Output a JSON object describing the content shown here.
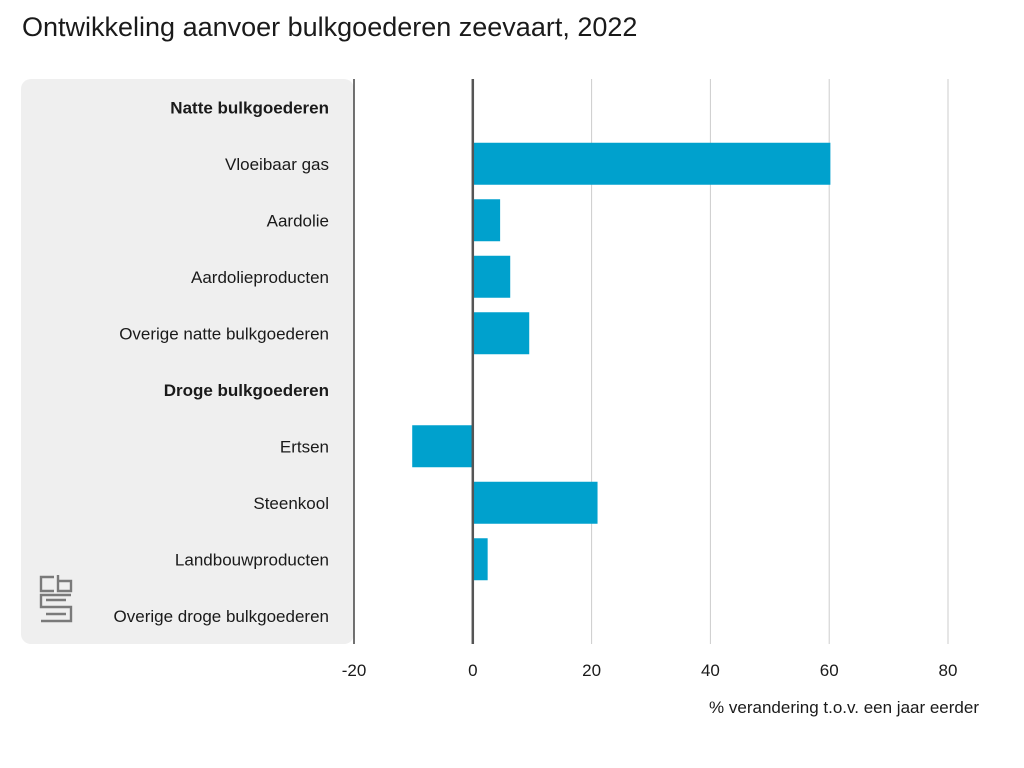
{
  "chart_data": {
    "type": "bar",
    "orientation": "horizontal",
    "title": "Ontwikkeling aanvoer bulkgoederen zeevaart, 2022",
    "xlabel": "% verandering t.o.v. een jaar eerder",
    "ylabel": "",
    "xlim": [
      -20,
      80
    ],
    "xticks": [
      -20,
      0,
      20,
      40,
      60,
      80
    ],
    "grid": true,
    "colors": {
      "bar": "#00a1cd",
      "panel": "#efefef",
      "grid": "#cccccc",
      "zero_line": "#555555"
    },
    "categories": [
      {
        "label": "Natte bulkgoederen",
        "header": true,
        "value": null
      },
      {
        "label": "Vloeibaar gas",
        "header": false,
        "value": 60.2
      },
      {
        "label": "Aardolie",
        "header": false,
        "value": 4.6
      },
      {
        "label": "Aardolieproducten",
        "header": false,
        "value": 6.3
      },
      {
        "label": "Overige natte bulkgoederen",
        "header": false,
        "value": 9.5
      },
      {
        "label": "Droge bulkgoederen",
        "header": true,
        "value": null
      },
      {
        "label": "Ertsen",
        "header": false,
        "value": -10.2
      },
      {
        "label": "Steenkool",
        "header": false,
        "value": 21.0
      },
      {
        "label": "Landbouwproducten",
        "header": false,
        "value": 2.5
      },
      {
        "label": "Overige droge bulkgoederen",
        "header": false,
        "value": 0.2
      }
    ]
  },
  "logo": {
    "icon": "cbs-logo-icon",
    "color": "#7a7a7a"
  }
}
